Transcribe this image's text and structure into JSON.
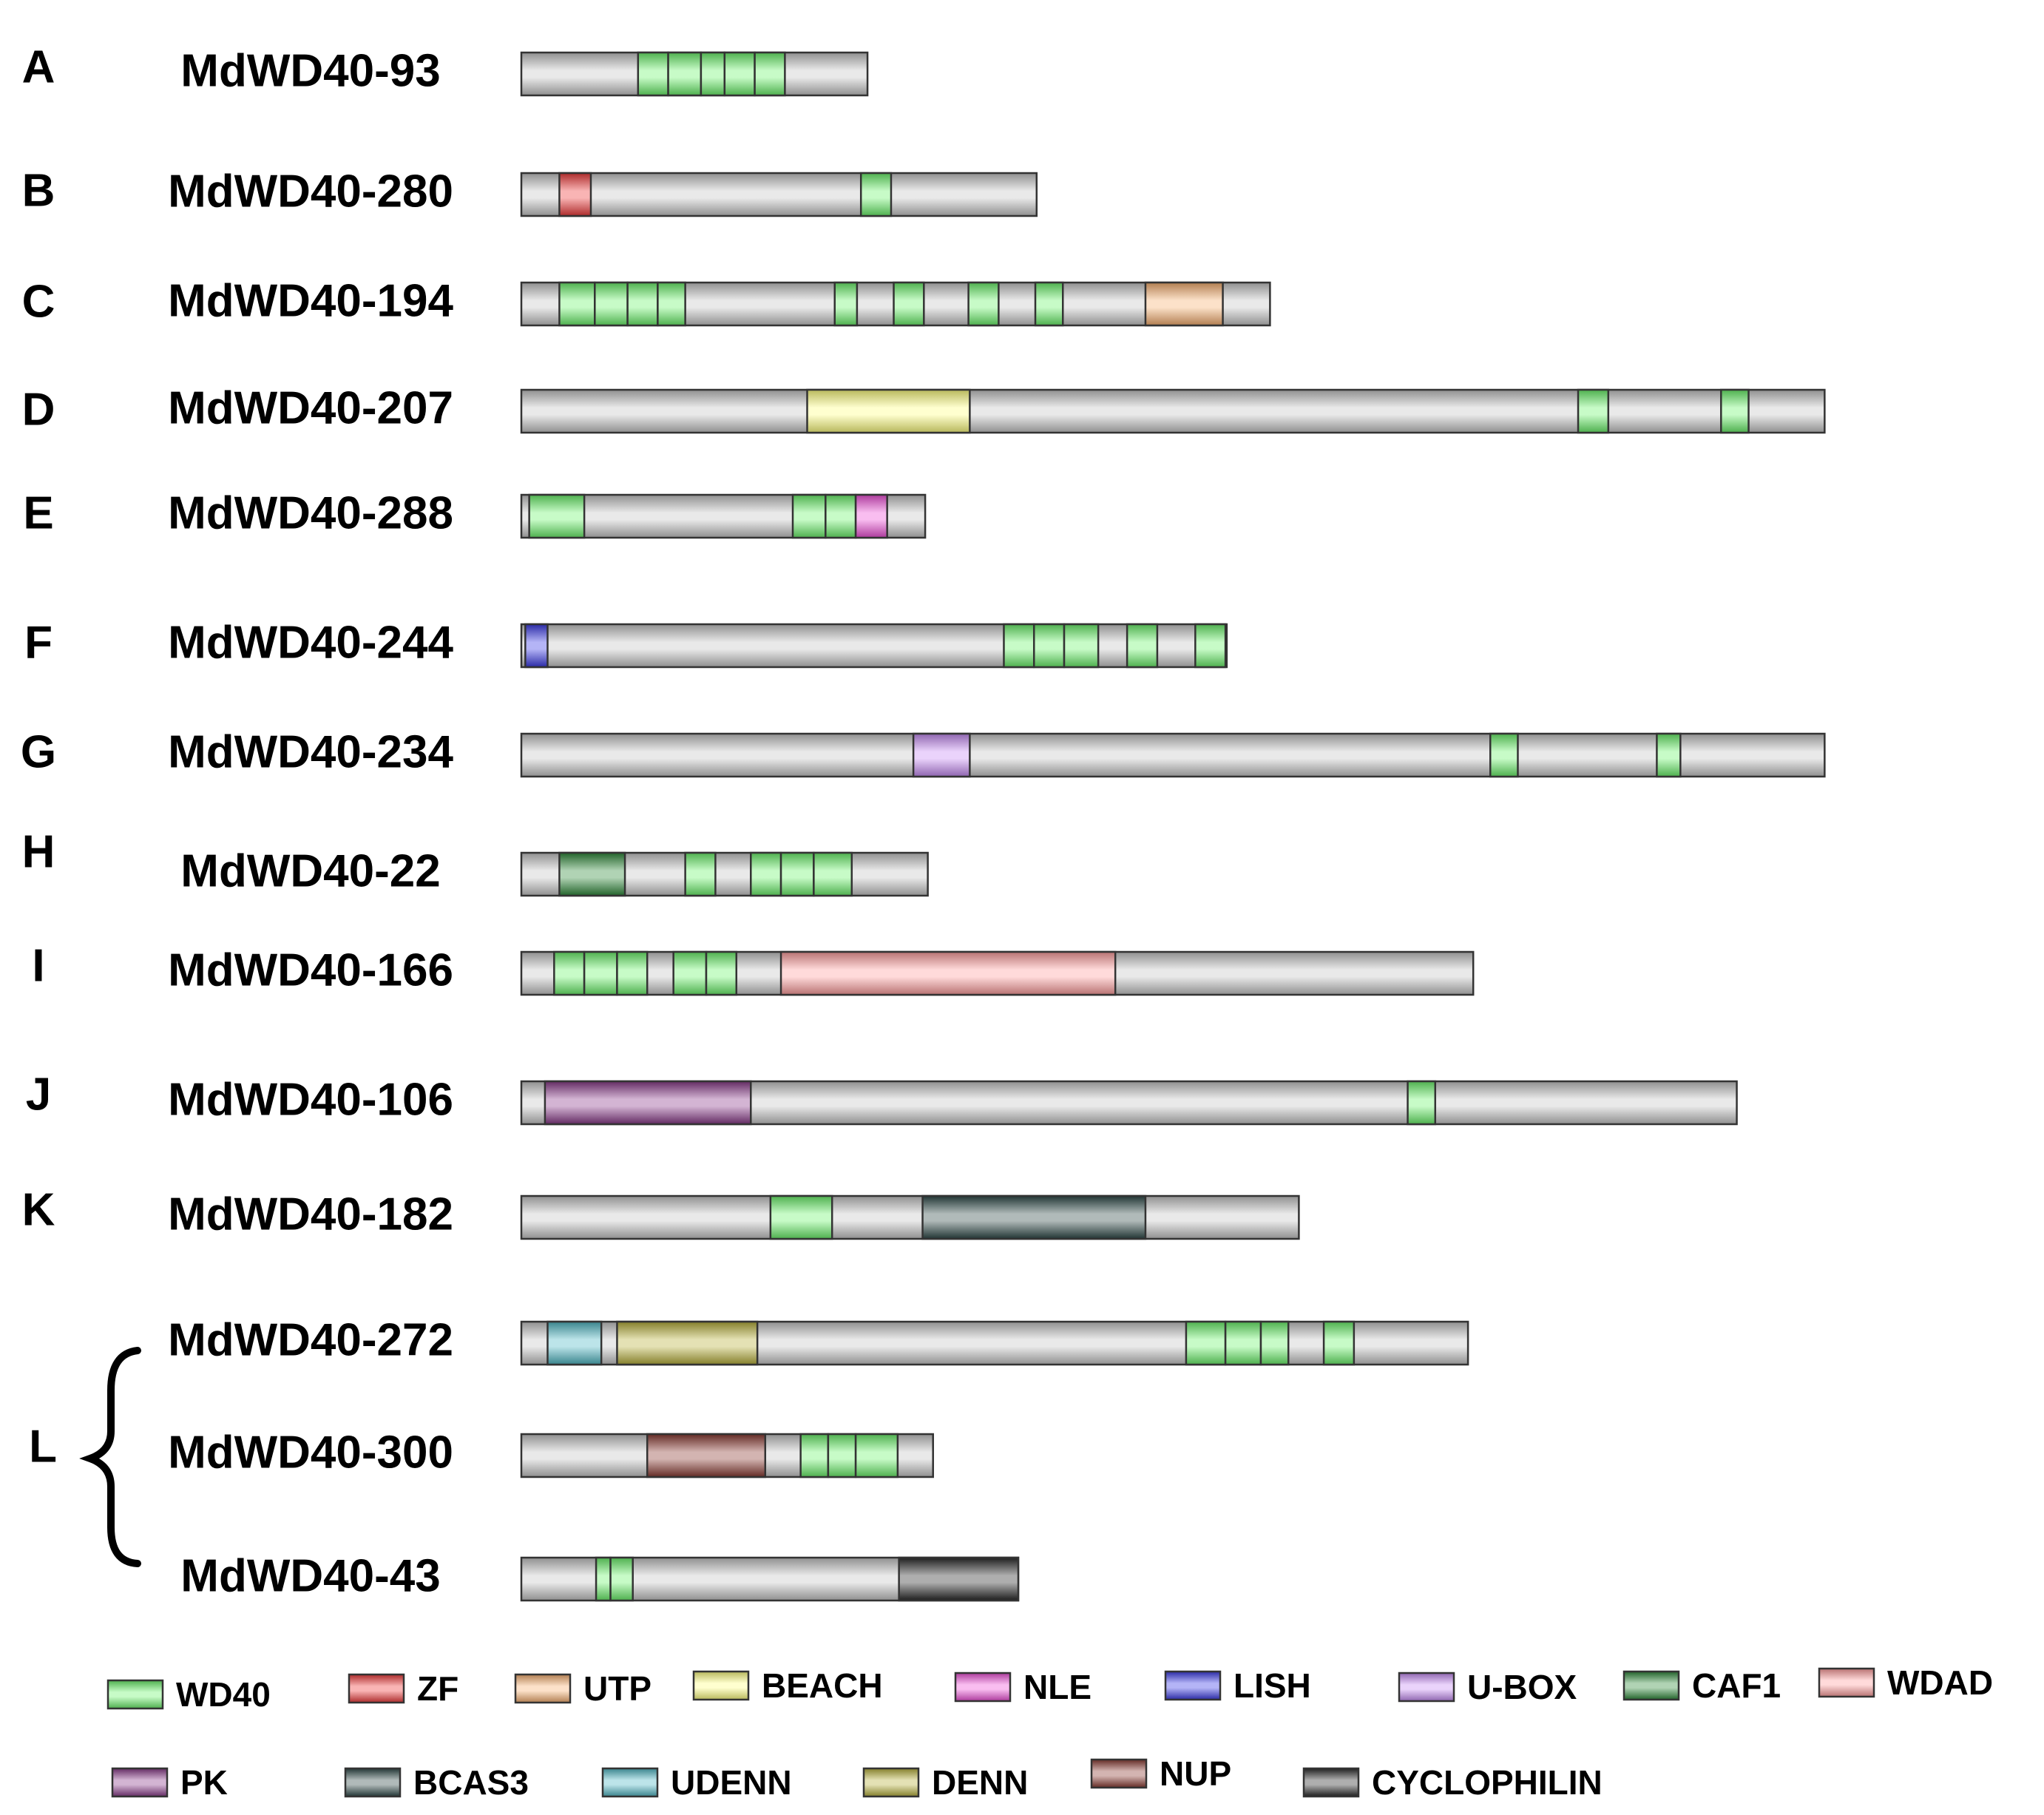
{
  "colors": {
    "bar_fill": "#c6c6c6",
    "bar_stroke": "#333333",
    "text": "#000000"
  },
  "domain_types": [
    {
      "key": "WD40",
      "label": "WD40",
      "color": "#6cf56c"
    },
    {
      "key": "ZF",
      "label": "ZF",
      "color": "#f03a3a"
    },
    {
      "key": "UTP",
      "label": "UTP",
      "color": "#f7b070"
    },
    {
      "key": "BEACH",
      "label": "BEACH",
      "color": "#ffff80"
    },
    {
      "key": "NLE",
      "label": "NLE",
      "color": "#f050d8"
    },
    {
      "key": "LISH",
      "label": "LISH",
      "color": "#3a3ae6"
    },
    {
      "key": "UBOX",
      "label": "U-BOX",
      "color": "#c78cf5"
    },
    {
      "key": "CAF1",
      "label": "CAF1",
      "color": "#2f8a3a"
    },
    {
      "key": "WDAD",
      "label": "WDAD",
      "color": "#ff9e9e"
    },
    {
      "key": "PK",
      "label": "PK",
      "color": "#8a3a8a"
    },
    {
      "key": "BCAS3",
      "label": "BCAS3",
      "color": "#2e4a48"
    },
    {
      "key": "UDENN",
      "label": "UDENN",
      "color": "#4fb8c4"
    },
    {
      "key": "DENN",
      "label": "DENN",
      "color": "#b8b03a"
    },
    {
      "key": "NUP",
      "label": "NUP",
      "color": "#8a3a32"
    },
    {
      "key": "CYCLOPHILIN",
      "label": "CYCLOPHILIN",
      "color": "#2a2a2a"
    }
  ],
  "groups": [
    {
      "letter": "A",
      "proteins": [
        {
          "name": "MdWD40-93",
          "length": 264,
          "domains": [
            {
              "type": "WD40",
              "start": 89,
              "end": 112
            },
            {
              "type": "WD40",
              "start": 112,
              "end": 137
            },
            {
              "type": "WD40",
              "start": 137,
              "end": 155
            },
            {
              "type": "WD40",
              "start": 155,
              "end": 178
            },
            {
              "type": "WD40",
              "start": 178,
              "end": 201
            }
          ]
        }
      ]
    },
    {
      "letter": "B",
      "proteins": [
        {
          "name": "MdWD40-280",
          "length": 393,
          "domains": [
            {
              "type": "ZF",
              "start": 29,
              "end": 53
            },
            {
              "type": "WD40",
              "start": 259,
              "end": 282
            }
          ]
        }
      ]
    },
    {
      "letter": "C",
      "proteins": [
        {
          "name": "MdWD40-194",
          "length": 571,
          "domains": [
            {
              "type": "WD40",
              "start": 29,
              "end": 56
            },
            {
              "type": "WD40",
              "start": 56,
              "end": 81
            },
            {
              "type": "WD40",
              "start": 81,
              "end": 104
            },
            {
              "type": "WD40",
              "start": 104,
              "end": 125
            },
            {
              "type": "WD40",
              "start": 239,
              "end": 256
            },
            {
              "type": "WD40",
              "start": 284,
              "end": 307
            },
            {
              "type": "WD40",
              "start": 341,
              "end": 364
            },
            {
              "type": "WD40",
              "start": 392,
              "end": 413
            },
            {
              "type": "UTP",
              "start": 476,
              "end": 535
            }
          ]
        }
      ]
    },
    {
      "letter": "D",
      "proteins": [
        {
          "name": "MdWD40-207",
          "length": 994,
          "domains": [
            {
              "type": "BEACH",
              "start": 218,
              "end": 342
            },
            {
              "type": "WD40",
              "start": 806,
              "end": 829
            },
            {
              "type": "WD40",
              "start": 915,
              "end": 936
            }
          ]
        }
      ]
    },
    {
      "letter": "E",
      "proteins": [
        {
          "name": "MdWD40-288",
          "length": 308,
          "domains": [
            {
              "type": "WD40",
              "start": 6,
              "end": 48
            },
            {
              "type": "WD40",
              "start": 207,
              "end": 232
            },
            {
              "type": "WD40",
              "start": 232,
              "end": 255
            },
            {
              "type": "NLE",
              "start": 255,
              "end": 279
            }
          ]
        }
      ]
    },
    {
      "letter": "F",
      "proteins": [
        {
          "name": "MdWD40-244",
          "length": 538,
          "domains": [
            {
              "type": "LISH",
              "start": 3,
              "end": 20
            },
            {
              "type": "WD40",
              "start": 368,
              "end": 391
            },
            {
              "type": "WD40",
              "start": 391,
              "end": 414
            },
            {
              "type": "WD40",
              "start": 414,
              "end": 440
            },
            {
              "type": "WD40",
              "start": 462,
              "end": 485
            },
            {
              "type": "WD40",
              "start": 514,
              "end": 537
            }
          ]
        }
      ]
    },
    {
      "letter": "G",
      "proteins": [
        {
          "name": "MdWD40-234",
          "length": 994,
          "domains": [
            {
              "type": "UBOX",
              "start": 299,
              "end": 342
            },
            {
              "type": "WD40",
              "start": 739,
              "end": 760
            },
            {
              "type": "WD40",
              "start": 866,
              "end": 884
            }
          ]
        }
      ]
    },
    {
      "letter": "H",
      "proteins": [
        {
          "name": "MdWD40-22",
          "length": 310,
          "domains": [
            {
              "type": "CAF1",
              "start": 29,
              "end": 79
            },
            {
              "type": "WD40",
              "start": 125,
              "end": 148
            },
            {
              "type": "WD40",
              "start": 175,
              "end": 198
            },
            {
              "type": "WD40",
              "start": 198,
              "end": 223
            },
            {
              "type": "WD40",
              "start": 223,
              "end": 252
            }
          ]
        }
      ]
    },
    {
      "letter": "I",
      "proteins": [
        {
          "name": "MdWD40-166",
          "length": 726,
          "domains": [
            {
              "type": "WD40",
              "start": 25,
              "end": 48
            },
            {
              "type": "WD40",
              "start": 48,
              "end": 73
            },
            {
              "type": "WD40",
              "start": 73,
              "end": 96
            },
            {
              "type": "WD40",
              "start": 116,
              "end": 141
            },
            {
              "type": "WD40",
              "start": 141,
              "end": 164
            },
            {
              "type": "WDAD",
              "start": 198,
              "end": 453
            }
          ]
        }
      ]
    },
    {
      "letter": "J",
      "proteins": [
        {
          "name": "MdWD40-106",
          "length": 927,
          "domains": [
            {
              "type": "PK",
              "start": 18,
              "end": 175
            },
            {
              "type": "WD40",
              "start": 676,
              "end": 697
            }
          ]
        }
      ]
    },
    {
      "letter": "K",
      "proteins": [
        {
          "name": "MdWD40-182",
          "length": 593,
          "domains": [
            {
              "type": "WD40",
              "start": 190,
              "end": 237
            },
            {
              "type": "BCAS3",
              "start": 306,
              "end": 476
            }
          ]
        }
      ]
    },
    {
      "letter": "L",
      "proteins": [
        {
          "name": "MdWD40-272",
          "length": 722,
          "domains": [
            {
              "type": "UDENN",
              "start": 20,
              "end": 61
            },
            {
              "type": "DENN",
              "start": 73,
              "end": 180
            },
            {
              "type": "WD40",
              "start": 507,
              "end": 537
            },
            {
              "type": "WD40",
              "start": 537,
              "end": 564
            },
            {
              "type": "WD40",
              "start": 564,
              "end": 585
            },
            {
              "type": "WD40",
              "start": 612,
              "end": 635
            }
          ]
        },
        {
          "name": "MdWD40-300",
          "length": 314,
          "domains": [
            {
              "type": "NUP",
              "start": 96,
              "end": 186
            },
            {
              "type": "WD40",
              "start": 213,
              "end": 234
            },
            {
              "type": "WD40",
              "start": 234,
              "end": 255
            },
            {
              "type": "WD40",
              "start": 255,
              "end": 287
            }
          ]
        },
        {
          "name": "MdWD40-43",
          "length": 379,
          "domains": [
            {
              "type": "WD40",
              "start": 57,
              "end": 68
            },
            {
              "type": "WD40",
              "start": 68,
              "end": 85
            },
            {
              "type": "CYCLOPHILIN",
              "start": 288,
              "end": 379
            }
          ]
        }
      ]
    }
  ]
}
